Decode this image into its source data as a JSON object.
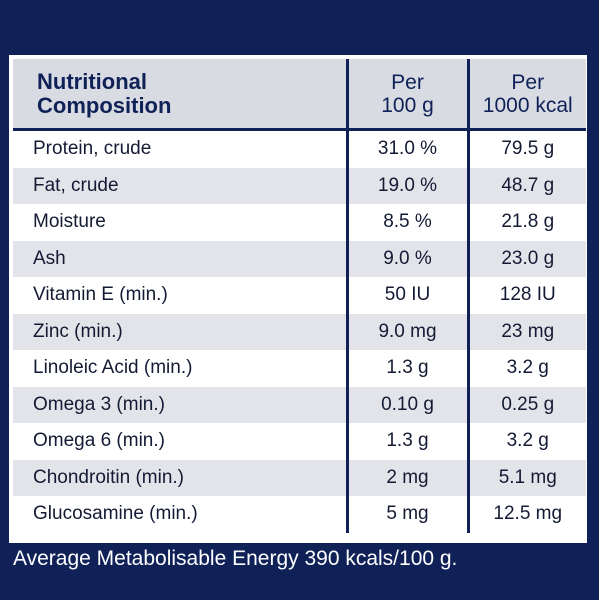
{
  "table": {
    "header": {
      "title_line1": "Nutritional",
      "title_line2": "Composition",
      "col1_line1": "Per",
      "col1_line2": "100 g",
      "col2_line1": "Per",
      "col2_line2": "1000 kcal"
    },
    "rows": [
      {
        "name": "Protein, crude",
        "per100g": "31.0 %",
        "per1000kcal": "79.5 g"
      },
      {
        "name": "Fat, crude",
        "per100g": "19.0 %",
        "per1000kcal": "48.7 g"
      },
      {
        "name": "Moisture",
        "per100g": "8.5 %",
        "per1000kcal": "21.8 g"
      },
      {
        "name": "Ash",
        "per100g": "9.0 %",
        "per1000kcal": "23.0 g"
      },
      {
        "name": "Vitamin E (min.)",
        "per100g": "50 IU",
        "per1000kcal": "128 IU"
      },
      {
        "name": "Zinc (min.)",
        "per100g": "9.0 mg",
        "per1000kcal": "23 mg"
      },
      {
        "name": "Linoleic Acid (min.)",
        "per100g": "1.3 g",
        "per1000kcal": "3.2 g"
      },
      {
        "name": "Omega 3 (min.)",
        "per100g": "0.10 g",
        "per1000kcal": "0.25 g"
      },
      {
        "name": "Omega 6 (min.)",
        "per100g": "1.3 g",
        "per1000kcal": "3.2 g"
      },
      {
        "name": "Chondroitin (min.)",
        "per100g": "2 mg",
        "per1000kcal": "5.1 mg"
      },
      {
        "name": "Glucosamine (min.)",
        "per100g": "5 mg",
        "per1000kcal": "12.5 mg"
      }
    ]
  },
  "footer": {
    "text": "Average Metabolisable Energy 390 kcals/100 g."
  },
  "colors": {
    "background": "#0f2157",
    "header_fill": "#d9dbe3",
    "row_stripe": "#e3e4ea",
    "row_plain": "#ffffff"
  }
}
